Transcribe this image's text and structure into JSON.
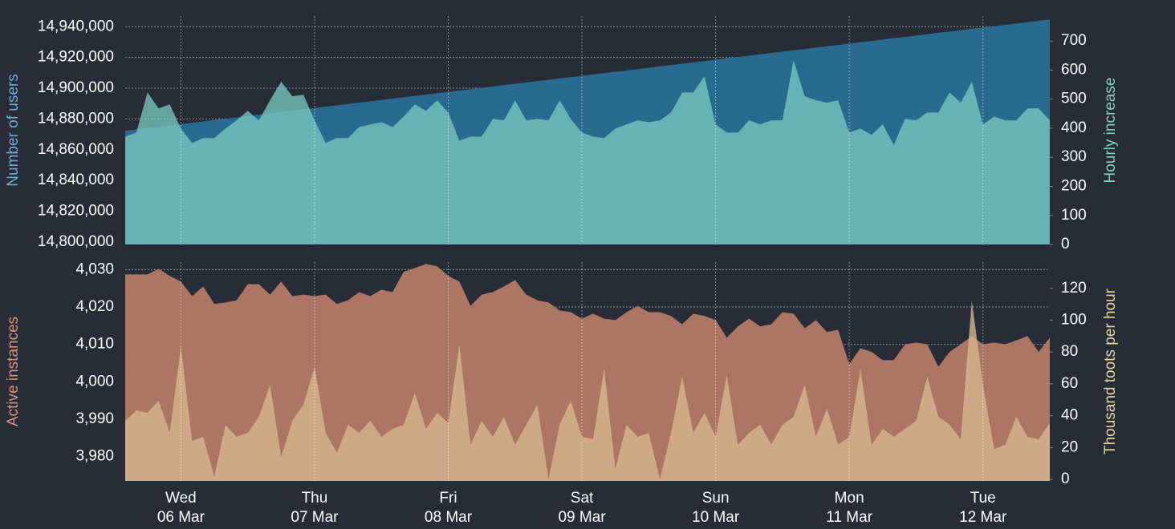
{
  "chart_data": [
    {
      "type": "area",
      "ylabel": "Number of users",
      "y2label": "Hourly increase",
      "ylim": [
        14798400,
        14946900
      ],
      "yticks": [
        {
          "value": 14800000,
          "label": "14,800,000"
        },
        {
          "value": 14820000,
          "label": "14,820,000"
        },
        {
          "value": 14840000,
          "label": "14,840,000"
        },
        {
          "value": 14860000,
          "label": "14,860,000"
        },
        {
          "value": 14880000,
          "label": "14,880,000"
        },
        {
          "value": 14900000,
          "label": "14,900,000"
        },
        {
          "value": 14920000,
          "label": "14,920,000"
        },
        {
          "value": 14940000,
          "label": "14,940,000"
        }
      ],
      "y2lim": [
        0,
        786
      ],
      "y2ticks": [
        0,
        100,
        200,
        300,
        400,
        500,
        600,
        700
      ],
      "grid": true,
      "series": [
        {
          "color": "#2a6a8e",
          "axis": "y",
          "values": [
            14872300,
            14873200,
            14874000,
            14874900,
            14875800,
            14876700,
            14877500,
            14878400,
            14879300,
            14880100,
            14881000,
            14881900,
            14882800,
            14883600,
            14884500,
            14885400,
            14886300,
            14887100,
            14888000,
            14888900,
            14889700,
            14890600,
            14891500,
            14892400,
            14893200,
            14894100,
            14895000,
            14895800,
            14896700,
            14897600,
            14898500,
            14899300,
            14900200,
            14901100,
            14902000,
            14902800,
            14903700,
            14904600,
            14905400,
            14906300,
            14907200,
            14908100,
            14908900,
            14909800,
            14910700,
            14911500,
            14912400,
            14913300,
            14914200,
            14915000,
            14915900,
            14916800,
            14917600,
            14918500,
            14919400,
            14920300,
            14921100,
            14922000,
            14922900,
            14923700,
            14924600,
            14925500,
            14926400,
            14927200,
            14928100,
            14929000,
            14929900,
            14930700,
            14931600,
            14932500,
            14933300,
            14934200,
            14935100,
            14936000,
            14936800,
            14937700,
            14938600,
            14939400,
            14940300,
            14941200,
            14942100,
            14942900,
            14943800,
            14944700
          ]
        },
        {
          "color": "#79c7c0",
          "axis": "y2",
          "values": [
            371,
            385,
            523,
            468,
            482,
            399,
            349,
            366,
            366,
            399,
            427,
            460,
            427,
            496,
            560,
            510,
            515,
            427,
            349,
            366,
            366,
            404,
            413,
            421,
            404,
            440,
            482,
            460,
            496,
            454,
            357,
            371,
            371,
            432,
            427,
            496,
            427,
            432,
            427,
            496,
            432,
            385,
            371,
            366,
            399,
            413,
            427,
            421,
            427,
            454,
            523,
            523,
            579,
            413,
            385,
            385,
            427,
            413,
            427,
            427,
            634,
            510,
            496,
            488,
            496,
            385,
            399,
            377,
            413,
            343,
            432,
            427,
            454,
            454,
            523,
            488,
            560,
            413,
            440,
            427,
            427,
            468,
            468,
            427
          ]
        }
      ]
    },
    {
      "type": "area",
      "ylabel": "Active instances",
      "y2label": "Thousand toots per hour",
      "ylim": [
        3973.5,
        4032
      ],
      "yticks": [
        {
          "value": 3980,
          "label": "3,980"
        },
        {
          "value": 3990,
          "label": "3,990"
        },
        {
          "value": 4000,
          "label": "4,000"
        },
        {
          "value": 4010,
          "label": "4,010"
        },
        {
          "value": 4020,
          "label": "4,020"
        },
        {
          "value": 4030,
          "label": "4,030"
        }
      ],
      "y2lim": [
        -1,
        136.5
      ],
      "y2ticks": [
        0,
        20,
        40,
        60,
        80,
        100,
        120
      ],
      "grid": true,
      "categories": [
        null,
        null,
        null,
        null,
        null,
        [
          "Wed",
          "06 Mar"
        ],
        null,
        null,
        null,
        null,
        null,
        null,
        null,
        null,
        null,
        null,
        null,
        [
          "Thu",
          "07 Mar"
        ],
        null,
        null,
        null,
        null,
        null,
        null,
        null,
        null,
        null,
        null,
        null,
        [
          "Fri",
          "08 Mar"
        ],
        null,
        null,
        null,
        null,
        null,
        null,
        null,
        null,
        null,
        null,
        null,
        [
          "Sat",
          "09 Mar"
        ],
        null,
        null,
        null,
        null,
        null,
        null,
        null,
        null,
        null,
        null,
        null,
        [
          "Sun",
          "10 Mar"
        ],
        null,
        null,
        null,
        null,
        null,
        null,
        null,
        null,
        null,
        null,
        null,
        [
          "Mon",
          "11 Mar"
        ],
        null,
        null,
        null,
        null,
        null,
        null,
        null,
        null,
        null,
        null,
        null,
        [
          "Tue",
          "12 Mar"
        ],
        null,
        null,
        null,
        null,
        null,
        null
      ],
      "series": [
        {
          "color": "#ad7564",
          "axis": "y",
          "values": [
            4028.7,
            4028.7,
            4028.7,
            4030.2,
            4028.3,
            4026.8,
            4022.9,
            4025.5,
            4020.8,
            4021.2,
            4021.8,
            4026.1,
            4026.1,
            4023.3,
            4026.8,
            4022.9,
            4023.3,
            4022.9,
            4023.3,
            4020.8,
            4021.8,
            4024.0,
            4022.9,
            4024.6,
            4024.0,
            4029.4,
            4030.4,
            4031.5,
            4030.9,
            4028.3,
            4026.8,
            4020.3,
            4023.3,
            4024.0,
            4025.5,
            4027.2,
            4023.3,
            4021.8,
            4021.2,
            4019.1,
            4018.6,
            4016.9,
            4018.2,
            4016.9,
            4016.5,
            4018.6,
            4020.3,
            4018.6,
            4018.6,
            4017.6,
            4015.4,
            4018.2,
            4017.6,
            4016.5,
            4011.8,
            4014.8,
            4016.9,
            4014.8,
            4015.4,
            4018.6,
            4018.2,
            4014.3,
            4016.5,
            4013.3,
            4013.9,
            4004.7,
            4009.0,
            4008.0,
            4005.8,
            4005.8,
            4010.0,
            4010.5,
            4010.0,
            4004.0,
            4008.0,
            4010.0,
            4012.2,
            4010.0,
            4010.5,
            4010.0,
            4011.1,
            4012.2,
            4008.0,
            4011.8
          ]
        },
        {
          "color": "#d6b98e",
          "axis": "y2",
          "values": [
            36.8,
            43.3,
            41.8,
            49.4,
            29.2,
            83.6,
            24.2,
            26.7,
            1.5,
            34.3,
            26.7,
            29.2,
            39.3,
            59.4,
            14.1,
            36.8,
            46.9,
            70.5,
            29.2,
            16.6,
            34.3,
            29.2,
            36.8,
            26.7,
            31.7,
            34.3,
            54.4,
            31.7,
            41.8,
            35.3,
            84.6,
            21.7,
            36.8,
            26.7,
            39.3,
            21.7,
            34.3,
            46.9,
            0,
            34.3,
            49.4,
            26.7,
            25.2,
            69.5,
            6.5,
            34.3,
            26.7,
            29.2,
            0,
            29.2,
            64.5,
            29.2,
            41.8,
            26.7,
            65.5,
            21.7,
            29.2,
            34.3,
            21.7,
            34.3,
            39.3,
            59.4,
            26.7,
            44.3,
            21.7,
            26.7,
            69.5,
            21.7,
            31.7,
            26.7,
            31.7,
            36.8,
            64.5,
            39.3,
            34.3,
            25.2,
            112.3,
            59.4,
            19.1,
            21.7,
            39.3,
            26.7,
            25.2,
            35.3
          ]
        }
      ]
    }
  ]
}
